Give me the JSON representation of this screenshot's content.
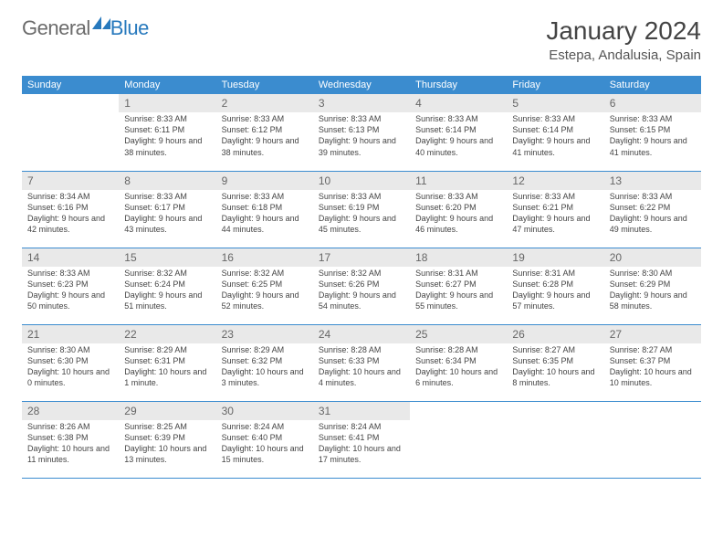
{
  "brand": {
    "part1": "General",
    "part2": "Blue"
  },
  "title": {
    "month": "January 2024",
    "location": "Estepa, Andalusia, Spain"
  },
  "colors": {
    "accent": "#3b8ccf",
    "text": "#444444",
    "muted": "#666666",
    "shade": "#e9e9e9",
    "border": "#3b8ccf",
    "brand_blue": "#2779bd",
    "brand_gray": "#6b6b6b",
    "background": "#ffffff"
  },
  "daysOfWeek": [
    "Sunday",
    "Monday",
    "Tuesday",
    "Wednesday",
    "Thursday",
    "Friday",
    "Saturday"
  ],
  "startOffset": 1,
  "cells": [
    {
      "n": 1,
      "sr": "8:33 AM",
      "ss": "6:11 PM",
      "dl": "9 hours and 38 minutes."
    },
    {
      "n": 2,
      "sr": "8:33 AM",
      "ss": "6:12 PM",
      "dl": "9 hours and 38 minutes."
    },
    {
      "n": 3,
      "sr": "8:33 AM",
      "ss": "6:13 PM",
      "dl": "9 hours and 39 minutes."
    },
    {
      "n": 4,
      "sr": "8:33 AM",
      "ss": "6:14 PM",
      "dl": "9 hours and 40 minutes."
    },
    {
      "n": 5,
      "sr": "8:33 AM",
      "ss": "6:14 PM",
      "dl": "9 hours and 41 minutes."
    },
    {
      "n": 6,
      "sr": "8:33 AM",
      "ss": "6:15 PM",
      "dl": "9 hours and 41 minutes."
    },
    {
      "n": 7,
      "sr": "8:34 AM",
      "ss": "6:16 PM",
      "dl": "9 hours and 42 minutes."
    },
    {
      "n": 8,
      "sr": "8:33 AM",
      "ss": "6:17 PM",
      "dl": "9 hours and 43 minutes."
    },
    {
      "n": 9,
      "sr": "8:33 AM",
      "ss": "6:18 PM",
      "dl": "9 hours and 44 minutes."
    },
    {
      "n": 10,
      "sr": "8:33 AM",
      "ss": "6:19 PM",
      "dl": "9 hours and 45 minutes."
    },
    {
      "n": 11,
      "sr": "8:33 AM",
      "ss": "6:20 PM",
      "dl": "9 hours and 46 minutes."
    },
    {
      "n": 12,
      "sr": "8:33 AM",
      "ss": "6:21 PM",
      "dl": "9 hours and 47 minutes."
    },
    {
      "n": 13,
      "sr": "8:33 AM",
      "ss": "6:22 PM",
      "dl": "9 hours and 49 minutes."
    },
    {
      "n": 14,
      "sr": "8:33 AM",
      "ss": "6:23 PM",
      "dl": "9 hours and 50 minutes."
    },
    {
      "n": 15,
      "sr": "8:32 AM",
      "ss": "6:24 PM",
      "dl": "9 hours and 51 minutes."
    },
    {
      "n": 16,
      "sr": "8:32 AM",
      "ss": "6:25 PM",
      "dl": "9 hours and 52 minutes."
    },
    {
      "n": 17,
      "sr": "8:32 AM",
      "ss": "6:26 PM",
      "dl": "9 hours and 54 minutes."
    },
    {
      "n": 18,
      "sr": "8:31 AM",
      "ss": "6:27 PM",
      "dl": "9 hours and 55 minutes."
    },
    {
      "n": 19,
      "sr": "8:31 AM",
      "ss": "6:28 PM",
      "dl": "9 hours and 57 minutes."
    },
    {
      "n": 20,
      "sr": "8:30 AM",
      "ss": "6:29 PM",
      "dl": "9 hours and 58 minutes."
    },
    {
      "n": 21,
      "sr": "8:30 AM",
      "ss": "6:30 PM",
      "dl": "10 hours and 0 minutes."
    },
    {
      "n": 22,
      "sr": "8:29 AM",
      "ss": "6:31 PM",
      "dl": "10 hours and 1 minute."
    },
    {
      "n": 23,
      "sr": "8:29 AM",
      "ss": "6:32 PM",
      "dl": "10 hours and 3 minutes."
    },
    {
      "n": 24,
      "sr": "8:28 AM",
      "ss": "6:33 PM",
      "dl": "10 hours and 4 minutes."
    },
    {
      "n": 25,
      "sr": "8:28 AM",
      "ss": "6:34 PM",
      "dl": "10 hours and 6 minutes."
    },
    {
      "n": 26,
      "sr": "8:27 AM",
      "ss": "6:35 PM",
      "dl": "10 hours and 8 minutes."
    },
    {
      "n": 27,
      "sr": "8:27 AM",
      "ss": "6:37 PM",
      "dl": "10 hours and 10 minutes."
    },
    {
      "n": 28,
      "sr": "8:26 AM",
      "ss": "6:38 PM",
      "dl": "10 hours and 11 minutes."
    },
    {
      "n": 29,
      "sr": "8:25 AM",
      "ss": "6:39 PM",
      "dl": "10 hours and 13 minutes."
    },
    {
      "n": 30,
      "sr": "8:24 AM",
      "ss": "6:40 PM",
      "dl": "10 hours and 15 minutes."
    },
    {
      "n": 31,
      "sr": "8:24 AM",
      "ss": "6:41 PM",
      "dl": "10 hours and 17 minutes."
    }
  ],
  "labels": {
    "sunrise": "Sunrise:",
    "sunset": "Sunset:",
    "daylight": "Daylight:"
  }
}
